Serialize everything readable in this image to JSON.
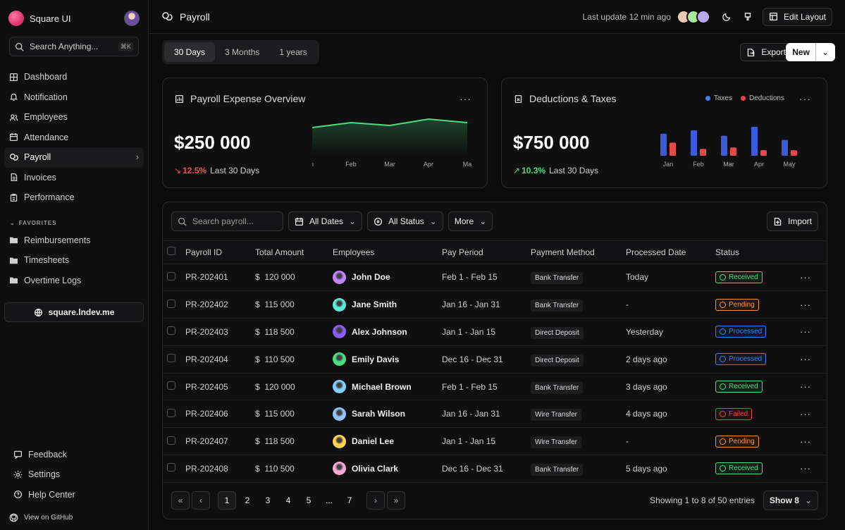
{
  "sidebar": {
    "brand": "Square UI",
    "search_placeholder": "Search Anything...",
    "shortcut": "⌘K",
    "nav": [
      {
        "label": "Dashboard",
        "icon": "dashboard-icon"
      },
      {
        "label": "Notification",
        "icon": "bell-icon"
      },
      {
        "label": "Employees",
        "icon": "users-icon"
      },
      {
        "label": "Attendance",
        "icon": "calendar-icon"
      },
      {
        "label": "Payroll",
        "icon": "payroll-icon"
      },
      {
        "label": "Invoices",
        "icon": "invoice-icon"
      },
      {
        "label": "Performance",
        "icon": "clipboard-icon"
      }
    ],
    "favorites_label": "FAVORITES",
    "favorites": [
      "Reimbursements",
      "Timesheets",
      "Overtime Logs"
    ],
    "site": "square.lndev.me",
    "bottom": [
      "Feedback",
      "Settings",
      "Help Center"
    ],
    "github": "View on GitHub"
  },
  "header": {
    "title": "Payroll",
    "last_update": "Last update 12 min ago",
    "edit_layout": "Edit Layout"
  },
  "range": [
    "30 Days",
    "3 Months",
    "1 years"
  ],
  "actions": {
    "export": "Export",
    "new": "New"
  },
  "cards": {
    "expense": {
      "title": "Payroll Expense Overview",
      "value": "$250 000",
      "delta": "12.5%",
      "sub": "Last 30 Days",
      "delta_color": "#f05252",
      "chart_data": {
        "type": "area",
        "categories": [
          "Jan",
          "Feb",
          "Mar",
          "Apr",
          "May"
        ],
        "tick_labels": [
          "Jan",
          "Feb",
          "Mar",
          "Apr",
          "Ma"
        ],
        "series": [
          {
            "values": [
              40,
              47,
              43,
              52,
              47
            ]
          }
        ],
        "ylim": [
          0,
          60
        ],
        "color": "#4ade80"
      }
    },
    "deductions": {
      "title": "Deductions & Taxes",
      "value": "$750 000",
      "delta": "10.3%",
      "sub": "Last 30 Days",
      "delta_color": "#4ade80",
      "legend": [
        "Taxes",
        "Deductions"
      ],
      "chart_data": {
        "type": "bar",
        "categories": [
          "Jan",
          "Feb",
          "Mar",
          "Apr",
          "May"
        ],
        "series": [
          {
            "name": "Taxes",
            "values": [
              32,
              37,
              29,
              42,
              23
            ],
            "color": "#3b5bdb"
          },
          {
            "name": "Deductions",
            "values": [
              19,
              10,
              12,
              8,
              8
            ],
            "color": "#e5484d"
          }
        ],
        "ylim": [
          0,
          45
        ]
      }
    }
  },
  "table": {
    "search_placeholder": "Search payroll...",
    "filters": [
      "All Dates",
      "All Status",
      "More"
    ],
    "import": "Import",
    "headers": [
      "Payroll ID",
      "Total Amount",
      "Employees",
      "Pay Period",
      "Payment Method",
      "Processed Date",
      "Status"
    ],
    "rows": [
      {
        "id": "PR-202401",
        "amount": "$  120 000",
        "name": "John Doe",
        "period": "Feb 1 - Feb 15",
        "method": "Bank Transfer",
        "date": "Today",
        "status": "Received",
        "av": "#c084fc"
      },
      {
        "id": "PR-202402",
        "amount": "$  115 000",
        "name": "Jane Smith",
        "period": "Jan 16 - Jan 31",
        "method": "Bank Transfer",
        "date": "-",
        "status": "Pending",
        "av": "#5eead4"
      },
      {
        "id": "PR-202403",
        "amount": "$  118 500",
        "name": "Alex Johnson",
        "period": "Jan 1 - Jan 15",
        "method": "Direct Deposit",
        "date": "Yesterday",
        "status": "Processed",
        "av": "#8b5cf6"
      },
      {
        "id": "PR-202404",
        "amount": "$  110 500",
        "name": "Emily Davis",
        "period": "Dec 16 - Dec 31",
        "method": "Direct Deposit",
        "date": "2 days ago",
        "status": "Processed",
        "av": "#4ade80"
      },
      {
        "id": "PR-202405",
        "amount": "$  120 000",
        "name": "Michael Brown",
        "period": "Feb 1 - Feb 15",
        "method": "Bank Transfer",
        "date": "3 days ago",
        "status": "Received",
        "av": "#7dd3fc"
      },
      {
        "id": "PR-202406",
        "amount": "$  115 000",
        "name": "Sarah Wilson",
        "period": "Jan 16 - Jan 31",
        "method": "Wire Transfer",
        "date": "4 days ago",
        "status": "Failed",
        "av": "#93c5fd"
      },
      {
        "id": "PR-202407",
        "amount": "$  118 500",
        "name": "Daniel Lee",
        "period": "Jan 1 - Jan 15",
        "method": "Wire Transfer",
        "date": "-",
        "status": "Pending",
        "av": "#fcd34d"
      },
      {
        "id": "PR-202408",
        "amount": "$  110 500",
        "name": "Olivia Clark",
        "period": "Dec 16 - Dec 31",
        "method": "Bank Transfer",
        "date": "5 days ago",
        "status": "Received",
        "av": "#f9a8d4"
      }
    ],
    "status_colors": {
      "Received": "#4ade80",
      "Pending": "#fb923c",
      "Processed": "#3b82f6",
      "Failed": "#ef4444"
    },
    "pages": [
      "1",
      "2",
      "3",
      "4",
      "5",
      "...",
      "7"
    ],
    "showing": "Showing 1 to 8 of 50 entries",
    "show": "Show 8"
  }
}
